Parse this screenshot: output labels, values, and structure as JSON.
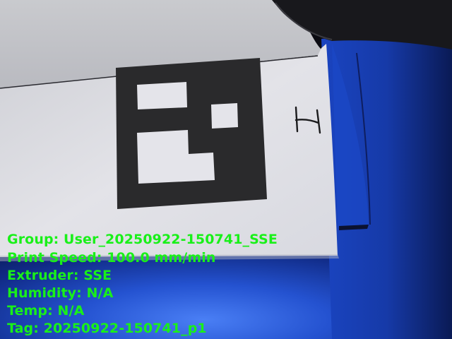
{
  "camera_feed": {
    "marker_icon": "aruco-fiducial-marker",
    "handwritten_mark": "H",
    "colors": {
      "overlay_text": "#19f019",
      "paper": "#e6e6ea",
      "marker_black": "#2a2a2c",
      "blue_tape": "#1840b8",
      "background": "#0b0b12"
    }
  },
  "overlay": {
    "group": "Group: User_20250922-150741_SSE",
    "print_speed": "Print Speed: 100.0 mm/min",
    "extruder": "Extruder: SSE",
    "humidity": "Humidity: N/A",
    "temp": "Temp: N/A",
    "tag": "Tag: 20250922-150741_p1"
  }
}
